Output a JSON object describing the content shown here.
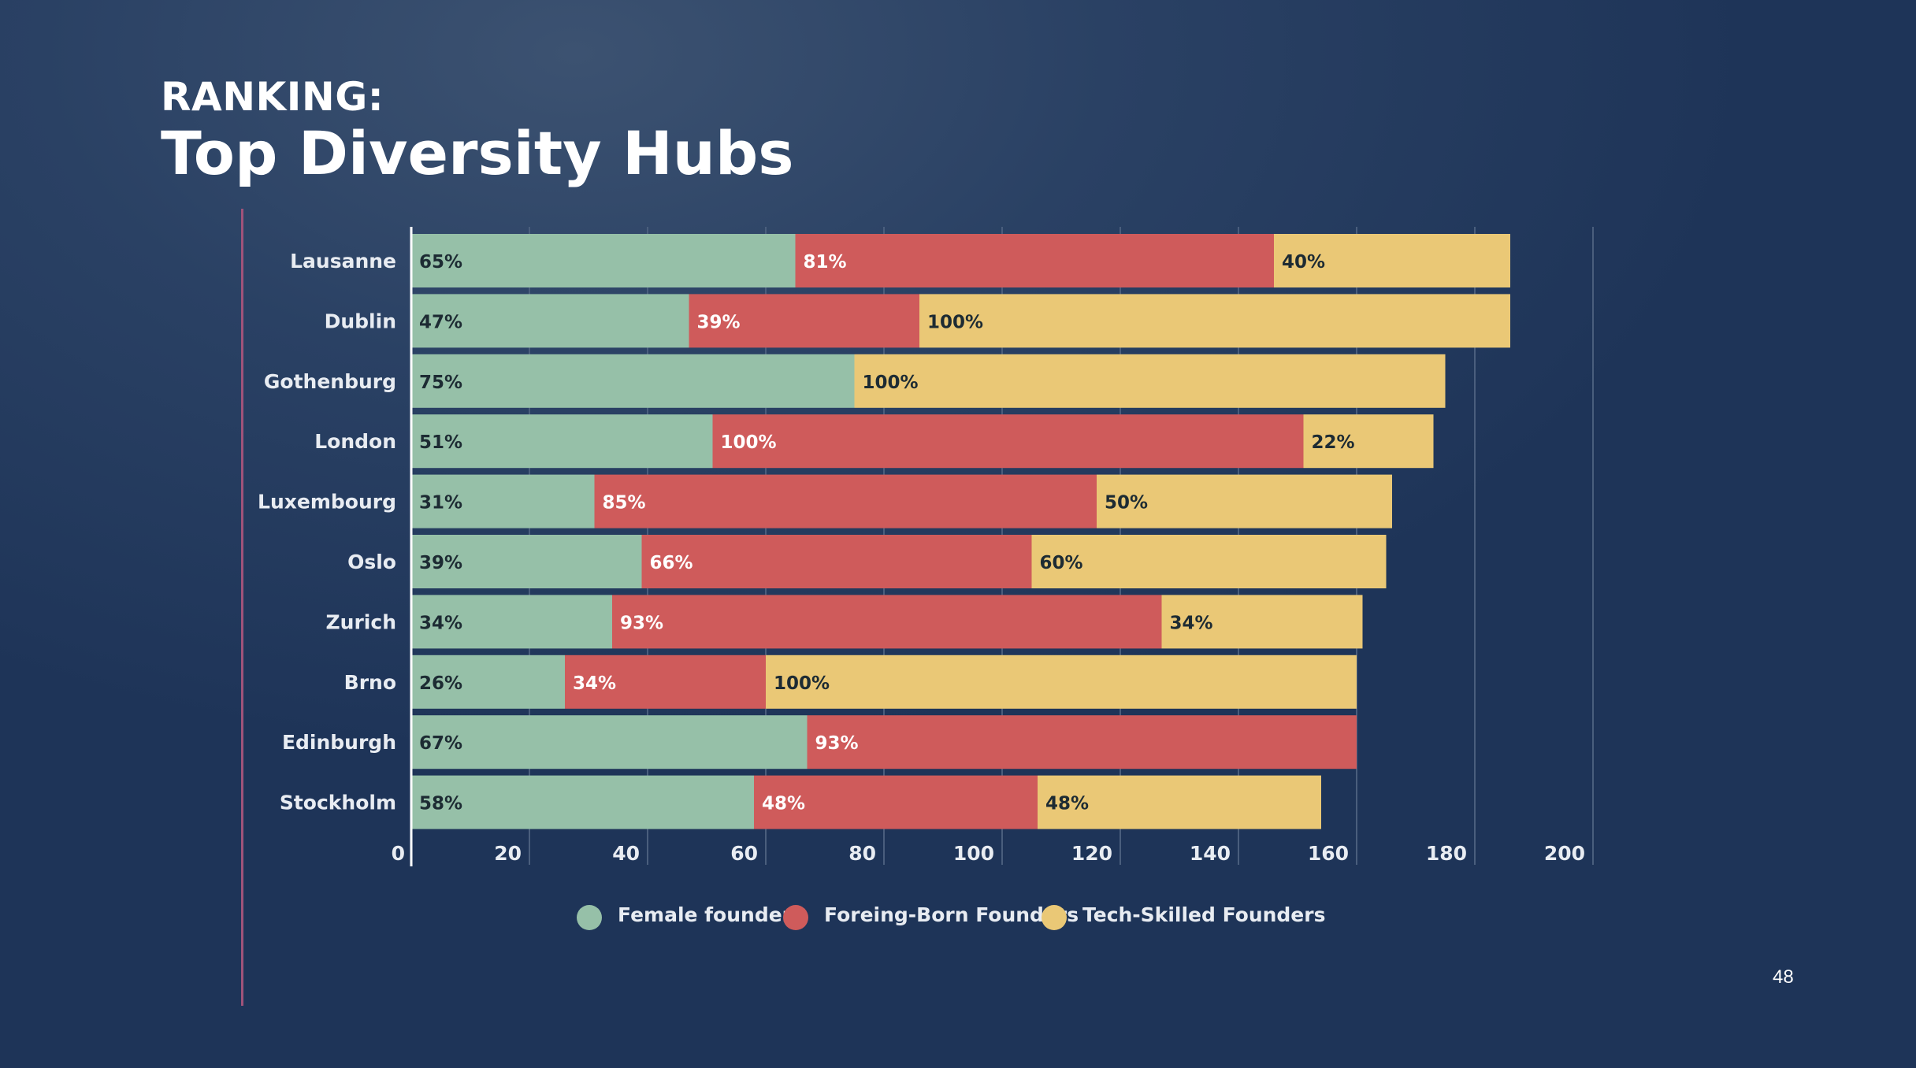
{
  "slide": {
    "kicker": "RANKING:",
    "title": "Top Diversity Hubs",
    "page_number": "48"
  },
  "colors": {
    "female": "#96c0a8",
    "foreign": "#cf5b5b",
    "tech": "#eac876",
    "grid": "#4a5e7d",
    "axis_text": "#e8ecf2"
  },
  "chart_data": {
    "type": "bar",
    "orientation": "horizontal",
    "stacked": true,
    "categories": [
      "Lausanne",
      "Dublin",
      "Gothenburg",
      "London",
      "Luxembourg",
      "Oslo",
      "Zurich",
      "Brno",
      "Edinburgh",
      "Stockholm"
    ],
    "series": [
      {
        "name": "Female founders",
        "values": [
          65,
          47,
          75,
          51,
          31,
          39,
          34,
          26,
          67,
          58
        ],
        "labels": [
          "65%",
          "47%",
          "75%",
          "51%",
          "31%",
          "39%",
          "34%",
          "26%",
          "67%",
          "58%"
        ]
      },
      {
        "name": "Foreing-Born Founders",
        "values": [
          81,
          39,
          0,
          100,
          85,
          66,
          93,
          34,
          93,
          48
        ],
        "labels": [
          "81%",
          "39%",
          "",
          "100%",
          "85%",
          "66%",
          "93%",
          "34%",
          "93%",
          "48%"
        ]
      },
      {
        "name": "Tech-Skilled Founders",
        "values": [
          40,
          100,
          100,
          22,
          50,
          60,
          34,
          100,
          0,
          48
        ],
        "labels": [
          "40%",
          "100%",
          "100%",
          "22%",
          "50%",
          "60%",
          "34%",
          "100%",
          "",
          "48%"
        ]
      }
    ],
    "xlim": [
      0,
      200
    ],
    "xticks": [
      0,
      20,
      40,
      60,
      80,
      100,
      120,
      140,
      160,
      180,
      200
    ],
    "grid": true,
    "legend_position": "bottom",
    "title": "",
    "xlabel": "",
    "ylabel": ""
  }
}
